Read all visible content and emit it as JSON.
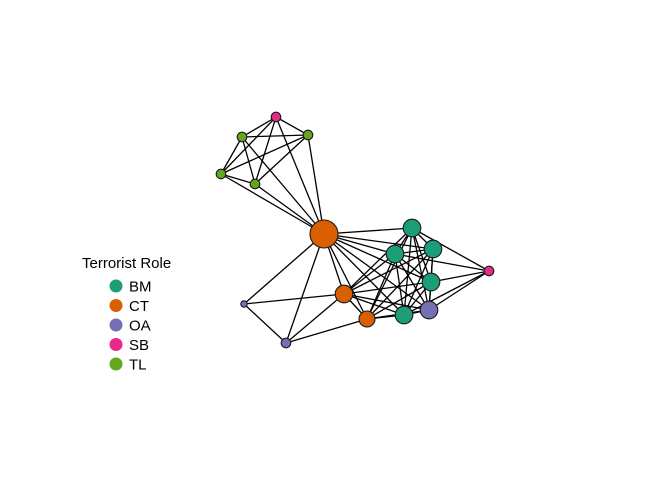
{
  "legend": {
    "title": "Terrorist Role",
    "items": [
      {
        "label": "BM",
        "color": "#1B9E77"
      },
      {
        "label": "CT",
        "color": "#D95F02"
      },
      {
        "label": "OA",
        "color": "#7570B3"
      },
      {
        "label": "SB",
        "color": "#E7298A"
      },
      {
        "label": "TL",
        "color": "#66A61E"
      }
    ]
  },
  "network": {
    "nodes": [
      {
        "id": "n1",
        "role": "SB",
        "degree": "low"
      },
      {
        "id": "n2",
        "role": "TL",
        "degree": "low"
      },
      {
        "id": "n3",
        "role": "TL",
        "degree": "low"
      },
      {
        "id": "n4",
        "role": "TL",
        "degree": "low"
      },
      {
        "id": "n5",
        "role": "TL",
        "degree": "low"
      },
      {
        "id": "n6",
        "role": "CT",
        "degree": "highest"
      },
      {
        "id": "n7",
        "role": "BM",
        "degree": "high"
      },
      {
        "id": "n8",
        "role": "BM",
        "degree": "high"
      },
      {
        "id": "n9",
        "role": "BM",
        "degree": "high"
      },
      {
        "id": "n10",
        "role": "SB",
        "degree": "low"
      },
      {
        "id": "n11",
        "role": "BM",
        "degree": "high"
      },
      {
        "id": "n12",
        "role": "CT",
        "degree": "high"
      },
      {
        "id": "n13",
        "role": "CT",
        "degree": "medium"
      },
      {
        "id": "n14",
        "role": "BM",
        "degree": "high"
      },
      {
        "id": "n15",
        "role": "OA",
        "degree": "high"
      },
      {
        "id": "n16",
        "role": "OA",
        "degree": "lowest"
      },
      {
        "id": "n17",
        "role": "OA",
        "degree": "low"
      }
    ],
    "edges": [
      [
        "n1",
        "n2"
      ],
      [
        "n1",
        "n3"
      ],
      [
        "n1",
        "n4"
      ],
      [
        "n1",
        "n5"
      ],
      [
        "n1",
        "n6"
      ],
      [
        "n2",
        "n3"
      ],
      [
        "n2",
        "n4"
      ],
      [
        "n2",
        "n5"
      ],
      [
        "n2",
        "n6"
      ],
      [
        "n3",
        "n4"
      ],
      [
        "n3",
        "n5"
      ],
      [
        "n3",
        "n6"
      ],
      [
        "n4",
        "n5"
      ],
      [
        "n4",
        "n6"
      ],
      [
        "n5",
        "n6"
      ],
      [
        "n6",
        "n7"
      ],
      [
        "n6",
        "n8"
      ],
      [
        "n6",
        "n9"
      ],
      [
        "n6",
        "n11"
      ],
      [
        "n6",
        "n12"
      ],
      [
        "n6",
        "n13"
      ],
      [
        "n6",
        "n14"
      ],
      [
        "n6",
        "n15"
      ],
      [
        "n6",
        "n16"
      ],
      [
        "n6",
        "n17"
      ],
      [
        "n7",
        "n8"
      ],
      [
        "n7",
        "n9"
      ],
      [
        "n7",
        "n10"
      ],
      [
        "n7",
        "n11"
      ],
      [
        "n7",
        "n12"
      ],
      [
        "n7",
        "n13"
      ],
      [
        "n7",
        "n14"
      ],
      [
        "n7",
        "n15"
      ],
      [
        "n8",
        "n9"
      ],
      [
        "n8",
        "n11"
      ],
      [
        "n8",
        "n12"
      ],
      [
        "n8",
        "n13"
      ],
      [
        "n8",
        "n14"
      ],
      [
        "n8",
        "n15"
      ],
      [
        "n9",
        "n10"
      ],
      [
        "n9",
        "n11"
      ],
      [
        "n9",
        "n12"
      ],
      [
        "n9",
        "n13"
      ],
      [
        "n9",
        "n14"
      ],
      [
        "n9",
        "n15"
      ],
      [
        "n10",
        "n11"
      ],
      [
        "n10",
        "n14"
      ],
      [
        "n10",
        "n15"
      ],
      [
        "n11",
        "n12"
      ],
      [
        "n11",
        "n13"
      ],
      [
        "n11",
        "n14"
      ],
      [
        "n11",
        "n15"
      ],
      [
        "n12",
        "n13"
      ],
      [
        "n12",
        "n14"
      ],
      [
        "n12",
        "n15"
      ],
      [
        "n12",
        "n16"
      ],
      [
        "n12",
        "n17"
      ],
      [
        "n13",
        "n14"
      ],
      [
        "n13",
        "n15"
      ],
      [
        "n13",
        "n17"
      ],
      [
        "n14",
        "n15"
      ],
      [
        "n16",
        "n17"
      ]
    ]
  }
}
